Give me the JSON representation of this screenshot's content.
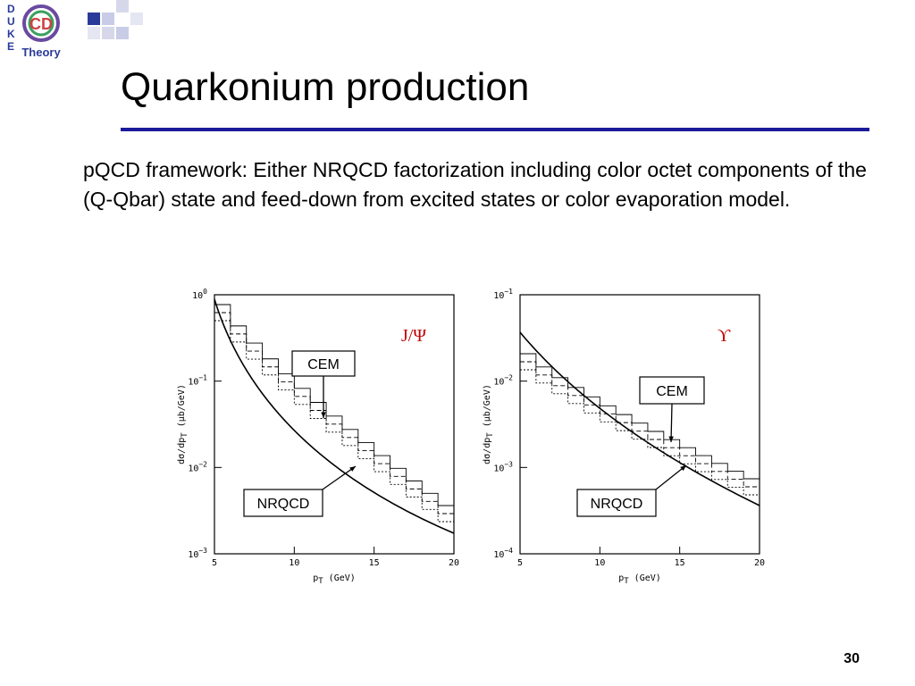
{
  "logo": {
    "letters": [
      "D",
      "U",
      "K",
      "E"
    ],
    "name": "Theory",
    "mark": "CD"
  },
  "title": "Quarkonium production",
  "body": "pQCD framework: Either NRQCD factorization including color octet components of the (Q-Qbar) state and feed-down from excited states or color evaporation model.",
  "figures": [
    {
      "particle": "J/Ψ",
      "yticks": [
        {
          "base": "10",
          "exp": "0"
        },
        {
          "base": "10",
          "exp": "−1"
        },
        {
          "base": "10",
          "exp": "−2"
        },
        {
          "base": "10",
          "exp": "−3"
        }
      ],
      "xticks": [
        "5",
        "10",
        "15",
        "20"
      ],
      "ylabel": {
        "main": "dσ/dp",
        "sub": "T",
        "unit": " (μb/GeV)"
      },
      "xlabel": {
        "main": "p",
        "sub": "T",
        "unit": " (GeV)"
      },
      "callouts": [
        "CEM",
        "NRQCD"
      ]
    },
    {
      "particle": "ϒ",
      "yticks": [
        {
          "base": "10",
          "exp": "−1"
        },
        {
          "base": "10",
          "exp": "−2"
        },
        {
          "base": "10",
          "exp": "−3"
        },
        {
          "base": "10",
          "exp": "−4"
        }
      ],
      "xticks": [
        "5",
        "10",
        "15",
        "20"
      ],
      "ylabel": {
        "main": "dσ/dp",
        "sub": "T",
        "unit": " (μb/GeV)"
      },
      "xlabel": {
        "main": "p",
        "sub": "T",
        "unit": " (GeV)"
      },
      "callouts": [
        "CEM",
        "NRQCD"
      ]
    }
  ],
  "page_number": "30"
}
